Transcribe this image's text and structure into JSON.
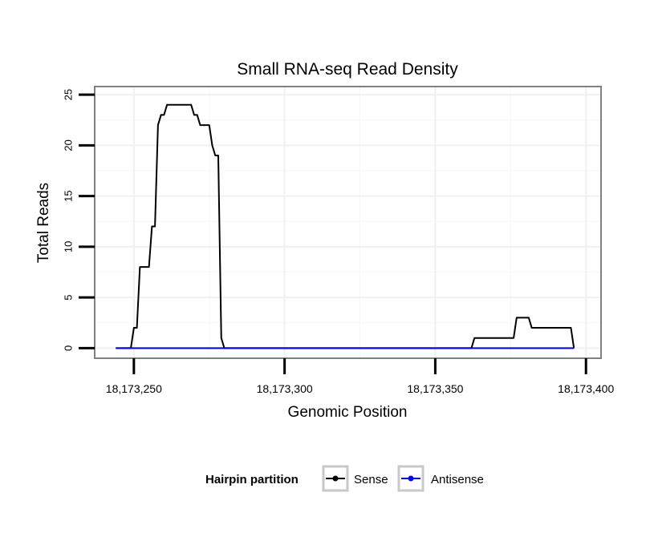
{
  "chart_data": {
    "type": "line",
    "title": "Small RNA-seq Read Density",
    "xlabel": "Genomic Position",
    "ylabel": "Total Reads",
    "xlim": [
      18173237,
      18173405
    ],
    "ylim": [
      -1,
      25.8
    ],
    "x_ticks": [
      18173250,
      18173300,
      18173350,
      18173400
    ],
    "x_tick_labels": [
      "18,173,250",
      "18,173,300",
      "18,173,350",
      "18,173,400"
    ],
    "y_ticks": [
      0,
      5,
      10,
      15,
      20,
      25
    ],
    "y_tick_labels": [
      "0",
      "5",
      "10",
      "15",
      "20",
      "25"
    ],
    "grid": true,
    "legend": {
      "title": "Hairpin partition",
      "position": "bottom",
      "entries": [
        "Sense",
        "Antisense"
      ]
    },
    "series": [
      {
        "name": "Sense",
        "color": "#000000",
        "points": [
          [
            18173244,
            0
          ],
          [
            18173249,
            0
          ],
          [
            18173250,
            2
          ],
          [
            18173251,
            2
          ],
          [
            18173252,
            8
          ],
          [
            18173255,
            8
          ],
          [
            18173256,
            12
          ],
          [
            18173257,
            12
          ],
          [
            18173258,
            22
          ],
          [
            18173259,
            23
          ],
          [
            18173260,
            23
          ],
          [
            18173261,
            24
          ],
          [
            18173269,
            24
          ],
          [
            18173270,
            23
          ],
          [
            18173271,
            23
          ],
          [
            18173272,
            22
          ],
          [
            18173275,
            22
          ],
          [
            18173276,
            20
          ],
          [
            18173277,
            19
          ],
          [
            18173278,
            19
          ],
          [
            18173279,
            1
          ],
          [
            18173280,
            0
          ],
          [
            18173362,
            0
          ],
          [
            18173363,
            1
          ],
          [
            18173376,
            1
          ],
          [
            18173377,
            3
          ],
          [
            18173381,
            3
          ],
          [
            18173382,
            2
          ],
          [
            18173395,
            2
          ],
          [
            18173396,
            0
          ]
        ]
      },
      {
        "name": "Antisense",
        "color": "#0000ff",
        "points": [
          [
            18173244,
            0
          ],
          [
            18173396,
            0
          ]
        ]
      }
    ]
  }
}
